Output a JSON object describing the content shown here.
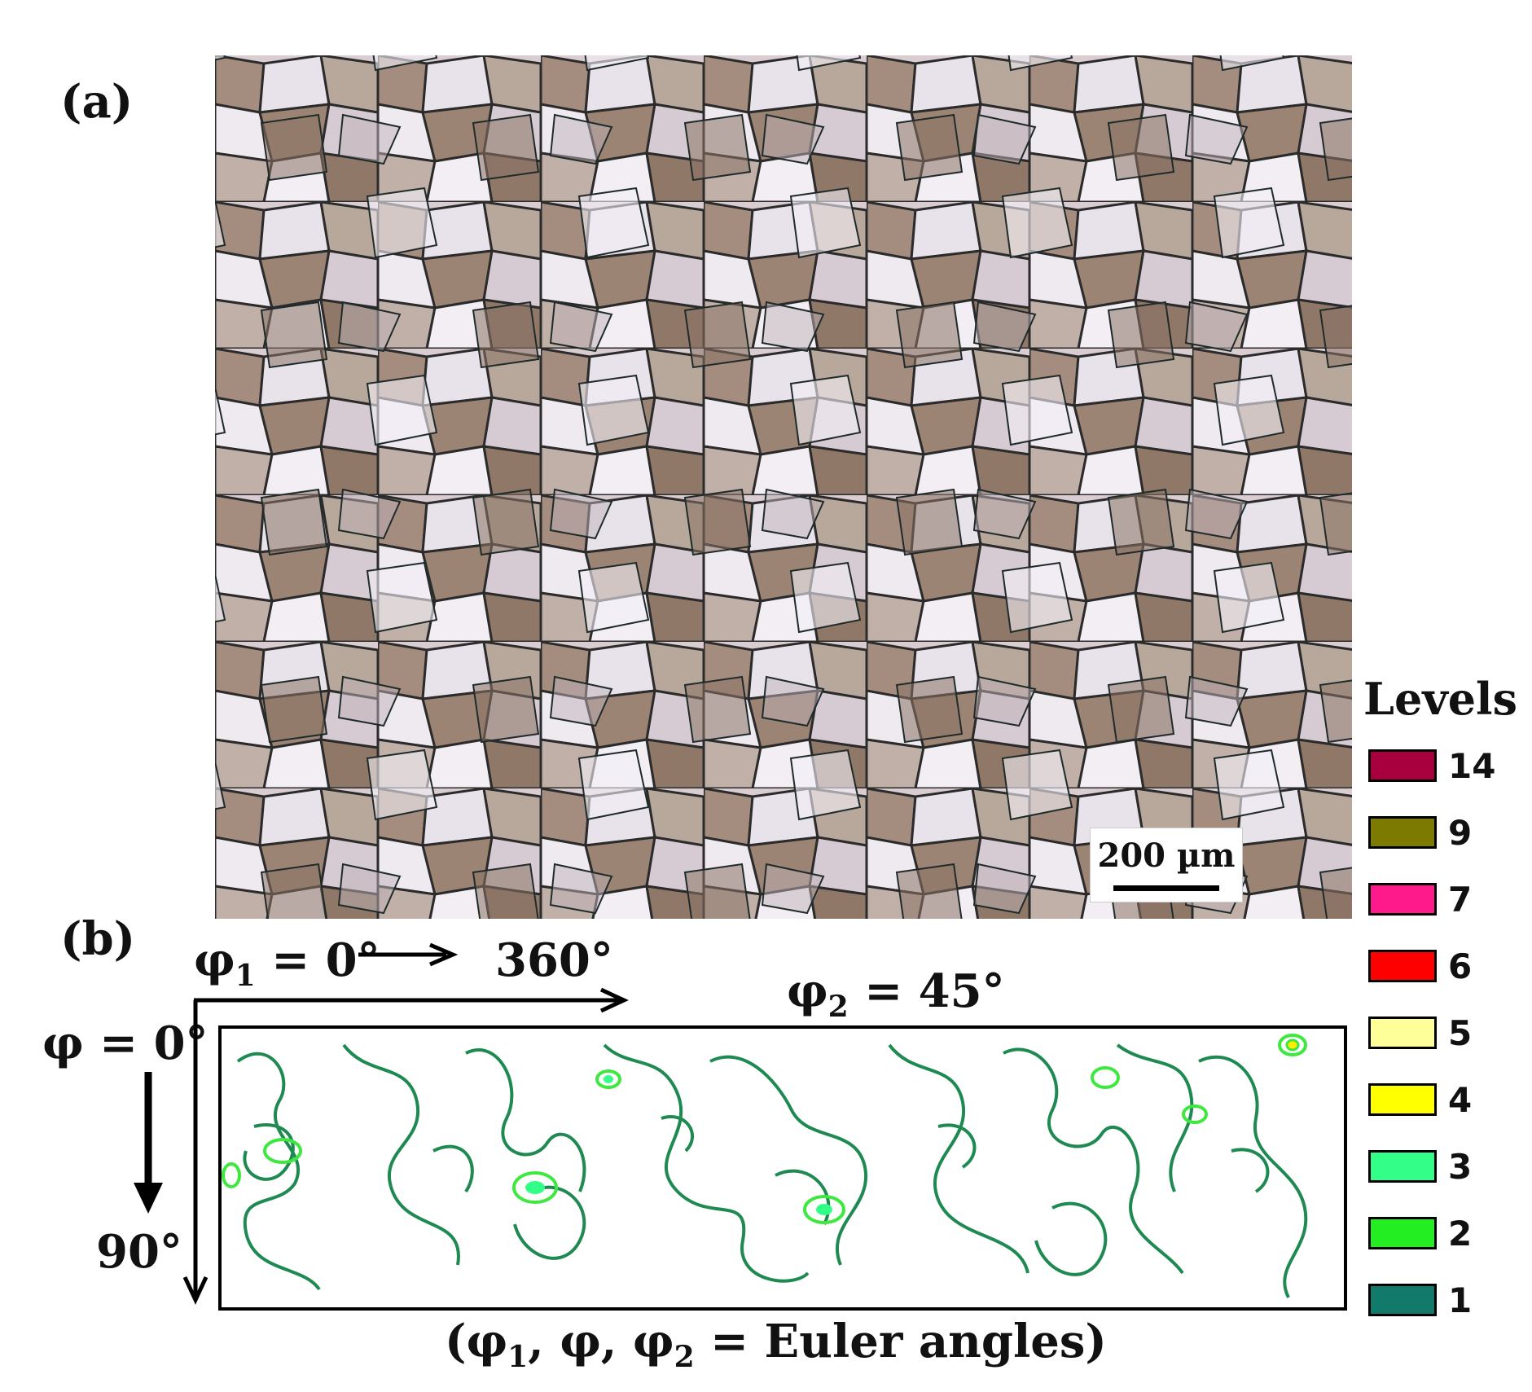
{
  "panel_a": {
    "label": "(a)",
    "scale_bar_text": "200 µm"
  },
  "panel_b": {
    "label": "(b)",
    "phi1_start": "φ",
    "phi1_start_sub": "1",
    "phi1_start_rest": " = 0°",
    "phi1_end": "360°",
    "phi2_sym": "φ",
    "phi2_sub": "2",
    "phi2_rest": " = 45°",
    "phi_start": "φ = 0°",
    "phi_end": "90°",
    "caption_parts": [
      "(φ",
      "1",
      ", φ, φ",
      "2",
      " = Euler angles)"
    ]
  },
  "legend": {
    "title": "Levels",
    "items": [
      {
        "label": "14",
        "color": "#a8003f"
      },
      {
        "label": "9",
        "color": "#7d7a00"
      },
      {
        "label": "7",
        "color": "#ff1a8c"
      },
      {
        "label": "6",
        "color": "#ff0000"
      },
      {
        "label": "5",
        "color": "#ffff99"
      },
      {
        "label": "4",
        "color": "#ffff00"
      },
      {
        "label": "3",
        "color": "#33ff88"
      },
      {
        "label": "2",
        "color": "#22ee22"
      },
      {
        "label": "1",
        "color": "#127a6a"
      }
    ]
  },
  "colors": {
    "contour_level1": "#1e8a52",
    "contour_level2": "#3ee83e",
    "contour_level3": "#44f07a",
    "contour_level4": "#ffee00"
  }
}
